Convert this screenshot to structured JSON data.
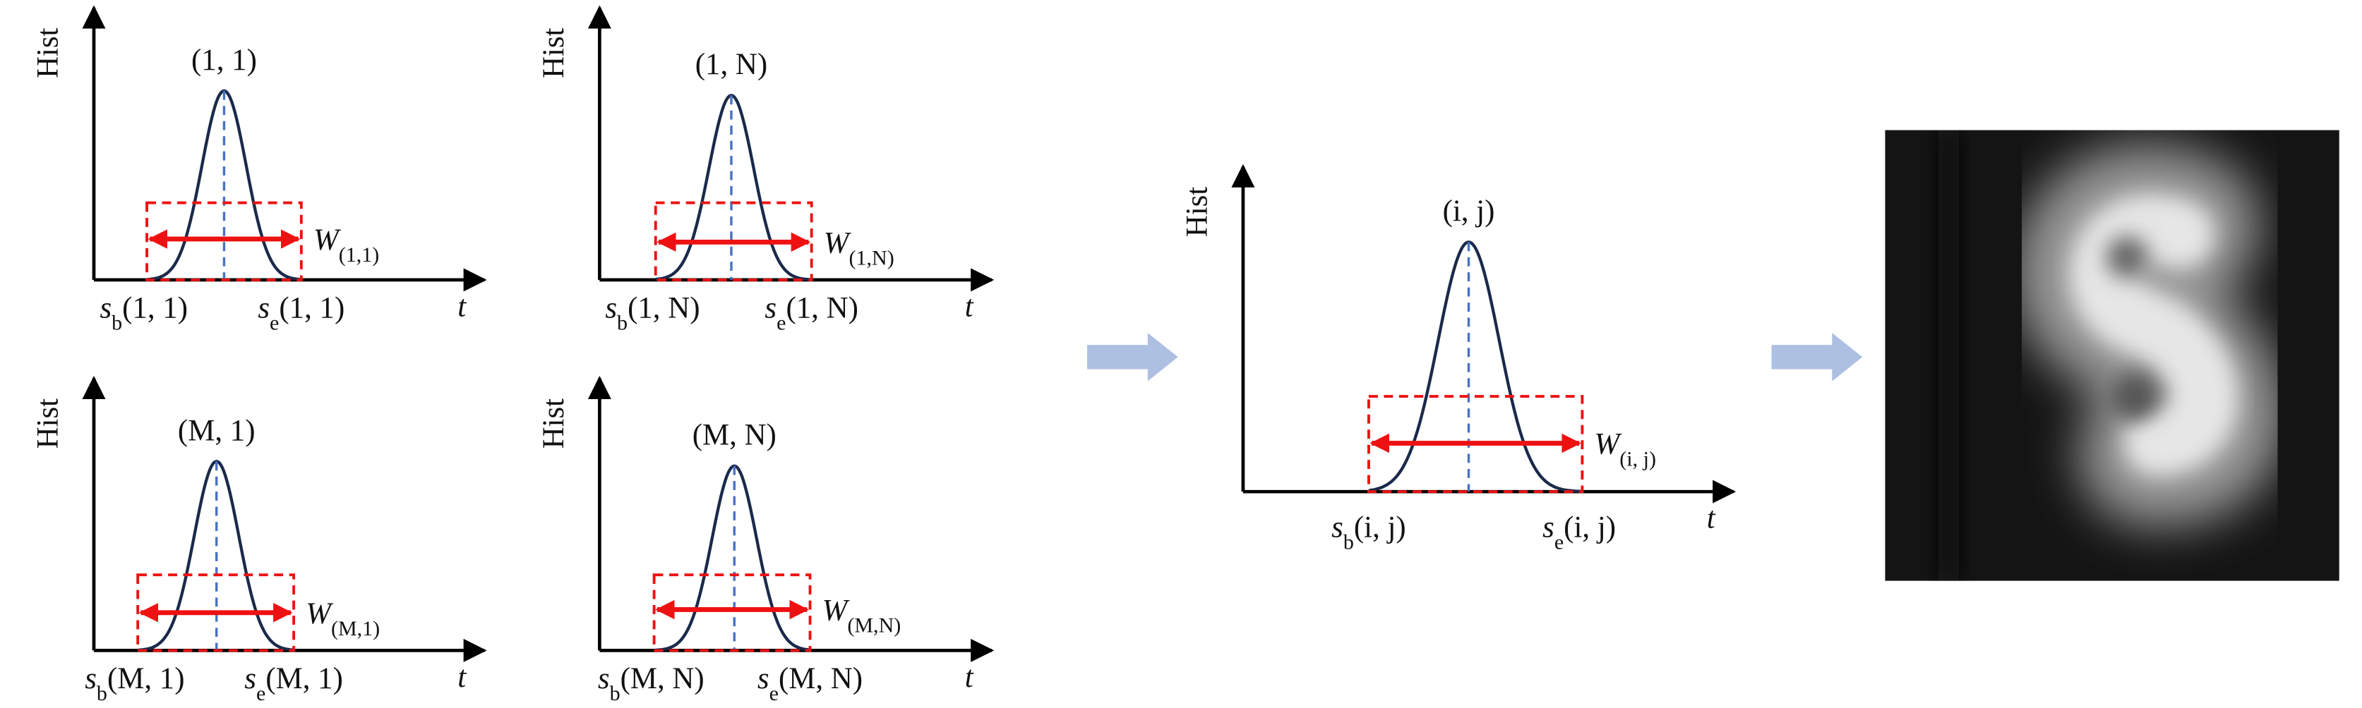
{
  "panels": [
    {
      "y_label": "Hist",
      "x_label": "t",
      "title": "(1, 1)",
      "start": {
        "symbol": "s",
        "sub": "b",
        "arg": "(1, 1)"
      },
      "end": {
        "symbol": "s",
        "sub": "e",
        "arg": "(1, 1)"
      },
      "width": {
        "symbol": "W",
        "sub": "(1,1)"
      }
    },
    {
      "y_label": "Hist",
      "x_label": "t",
      "title": "(1, N)",
      "start": {
        "symbol": "s",
        "sub": "b",
        "arg": "(1, N)"
      },
      "end": {
        "symbol": "s",
        "sub": "e",
        "arg": "(1, N)"
      },
      "width": {
        "symbol": "W",
        "sub": "(1,N)"
      }
    },
    {
      "y_label": "Hist",
      "x_label": "t",
      "title": "(M, 1)",
      "start": {
        "symbol": "s",
        "sub": "b",
        "arg": "(M, 1)"
      },
      "end": {
        "symbol": "s",
        "sub": "e",
        "arg": "(M, 1)"
      },
      "width": {
        "symbol": "W",
        "sub": "(M,1)"
      }
    },
    {
      "y_label": "Hist",
      "x_label": "t",
      "title": "(M, N)",
      "start": {
        "symbol": "s",
        "sub": "b",
        "arg": "(M, N)"
      },
      "end": {
        "symbol": "s",
        "sub": "e",
        "arg": "(M, N)"
      },
      "width": {
        "symbol": "W",
        "sub": "(M,N)"
      }
    },
    {
      "y_label": "Hist",
      "x_label": "t",
      "title": "(i, j)",
      "start": {
        "symbol": "s",
        "sub": "b",
        "arg": "(i, j)"
      },
      "end": {
        "symbol": "s",
        "sub": "e",
        "arg": "(i, j)"
      },
      "width": {
        "symbol": "W",
        "sub": "(i, j)"
      }
    }
  ]
}
